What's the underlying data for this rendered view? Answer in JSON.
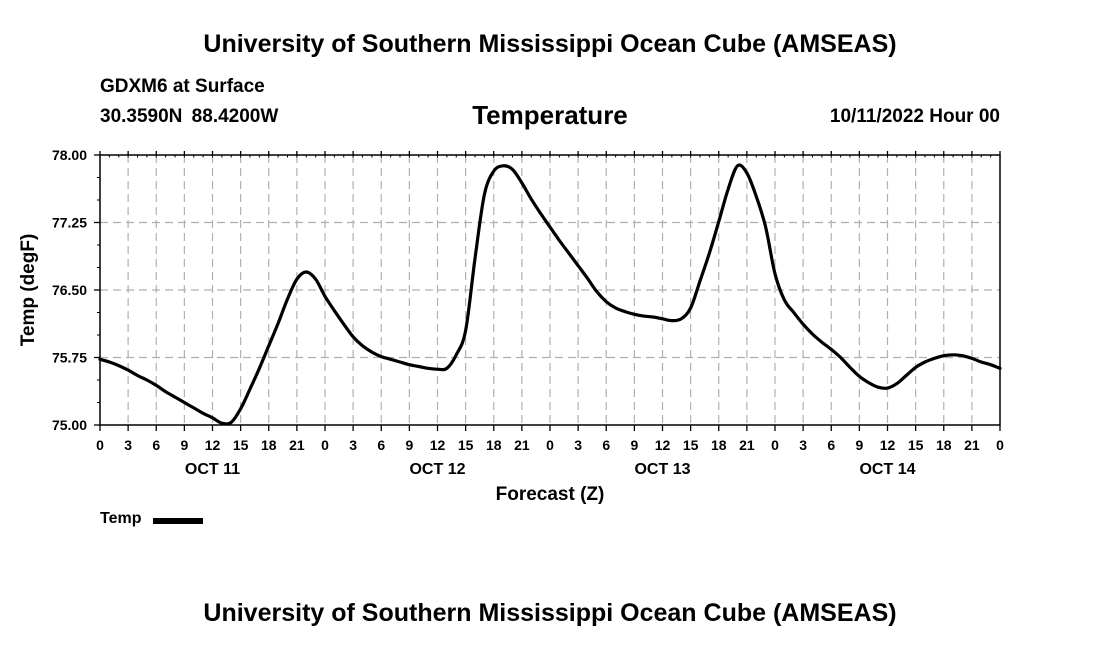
{
  "header": {
    "title": "University of Southern Mississippi Ocean Cube (AMSEAS)",
    "station": "GDXM6 at Surface",
    "coords": "30.3590N  88.4200W",
    "chart_title": "Temperature",
    "run_time": "10/11/2022 Hour 00"
  },
  "legend": {
    "label": "Temp",
    "color": "#000000"
  },
  "footer": {
    "title": "University of Southern Mississippi Ocean Cube (AMSEAS)"
  },
  "chart_data": {
    "type": "line",
    "title": "Temperature",
    "xlabel": "Forecast (Z)",
    "ylabel": "Temp (degF)",
    "x_unit": "hours from 10/11/2022 00Z",
    "xlim": [
      0,
      96
    ],
    "ylim": [
      75.0,
      78.0
    ],
    "y_ticks": [
      "75.00",
      "75.75",
      "76.50",
      "77.25",
      "78.00"
    ],
    "x_tick_labels": [
      "0",
      "3",
      "6",
      "9",
      "12",
      "15",
      "18",
      "21",
      "0",
      "3",
      "6",
      "9",
      "12",
      "15",
      "18",
      "21",
      "0",
      "3",
      "6",
      "9",
      "12",
      "15",
      "18",
      "21",
      "0",
      "3",
      "6",
      "9",
      "12",
      "15",
      "18",
      "21",
      "0"
    ],
    "day_labels": [
      {
        "label": "OCT 11",
        "hour": 12
      },
      {
        "label": "OCT 12",
        "hour": 36
      },
      {
        "label": "OCT 13",
        "hour": 60
      },
      {
        "label": "OCT 14",
        "hour": 84
      }
    ],
    "grid": true,
    "series": [
      {
        "name": "Temp",
        "color": "#000000",
        "x": [
          0,
          1,
          2,
          3,
          4,
          5,
          6,
          7,
          8,
          9,
          10,
          11,
          12,
          13,
          14,
          15,
          16,
          17,
          18,
          19,
          20,
          21,
          22,
          23,
          24,
          25,
          26,
          27,
          28,
          29,
          30,
          31,
          32,
          33,
          34,
          35,
          36,
          37,
          38,
          39,
          40,
          41,
          42,
          43,
          44,
          45,
          46,
          47,
          48,
          49,
          50,
          51,
          52,
          53,
          54,
          55,
          56,
          57,
          58,
          59,
          60,
          61,
          62,
          63,
          64,
          65,
          66,
          67,
          68,
          69,
          70,
          71,
          72,
          73,
          74,
          75,
          76,
          77,
          78,
          79,
          80,
          81,
          82,
          83,
          84,
          85,
          86,
          87,
          88,
          89,
          90,
          91,
          92,
          93,
          94,
          95,
          96
        ],
        "values": [
          75.73,
          75.7,
          75.66,
          75.61,
          75.55,
          75.5,
          75.44,
          75.37,
          75.31,
          75.25,
          75.19,
          75.13,
          75.08,
          75.02,
          75.03,
          75.18,
          75.4,
          75.63,
          75.88,
          76.13,
          76.4,
          76.62,
          76.7,
          76.62,
          76.43,
          76.27,
          76.12,
          75.98,
          75.88,
          75.81,
          75.76,
          75.73,
          75.7,
          75.67,
          75.65,
          75.63,
          75.62,
          75.63,
          75.78,
          76.05,
          76.85,
          77.56,
          77.82,
          77.88,
          77.84,
          77.69,
          77.51,
          77.35,
          77.2,
          77.05,
          76.91,
          76.77,
          76.63,
          76.48,
          76.37,
          76.3,
          76.26,
          76.23,
          76.21,
          76.2,
          76.18,
          76.16,
          76.18,
          76.3,
          76.6,
          76.91,
          77.26,
          77.62,
          77.88,
          77.8,
          77.54,
          77.2,
          76.68,
          76.39,
          76.25,
          76.12,
          76.01,
          75.92,
          75.84,
          75.75,
          75.64,
          75.54,
          75.47,
          75.42,
          75.41,
          75.46,
          75.55,
          75.64,
          75.7,
          75.74,
          75.77,
          75.78,
          75.77,
          75.74,
          75.7,
          75.67,
          75.63
        ]
      }
    ]
  }
}
